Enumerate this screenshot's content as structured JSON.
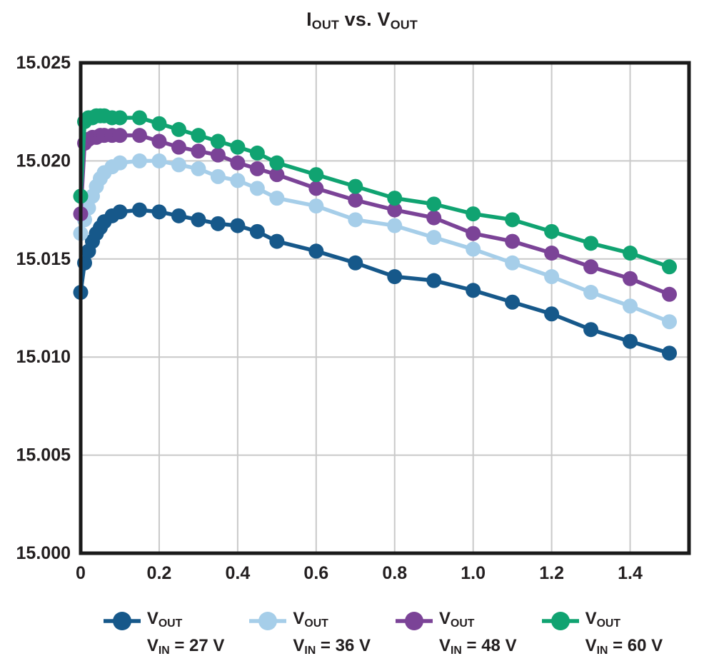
{
  "title": {
    "p1": "I",
    "s1": "OUT",
    "p2": " vs. ",
    "p3": "V",
    "s3": "OUT"
  },
  "colors": {
    "grid": "#C9C9C9",
    "frame": "#1A1A1A",
    "text": "#231F20",
    "background": "#FFFFFF"
  },
  "legend": {
    "items": [
      {
        "sym": "V",
        "sym_sub": "OUT",
        "cond": "V",
        "cond_sub": "IN",
        "cond_val": " = 27 V"
      },
      {
        "sym": "V",
        "sym_sub": "OUT",
        "cond": "V",
        "cond_sub": "IN",
        "cond_val": " = 36 V"
      },
      {
        "sym": "V",
        "sym_sub": "OUT",
        "cond": "V",
        "cond_sub": "IN",
        "cond_val": " = 48 V"
      },
      {
        "sym": "V",
        "sym_sub": "OUT",
        "cond": "V",
        "cond_sub": "IN",
        "cond_val": " = 60 V"
      }
    ]
  },
  "chart_data": {
    "type": "line",
    "title": "IOUT vs. VOUT",
    "xlabel": "",
    "ylabel": "",
    "grid": true,
    "legend_position": "bottom",
    "xlim": [
      0,
      1.55
    ],
    "ylim": [
      15.0,
      15.025
    ],
    "x_ticks": [
      0,
      0.2,
      0.4,
      0.6,
      0.8,
      1.0,
      1.2,
      1.4
    ],
    "x_tick_labels": [
      "0",
      "0.2",
      "0.4",
      "0.6",
      "0.8",
      "1.0",
      "1.2",
      "1.4"
    ],
    "y_ticks": [
      15.0,
      15.005,
      15.01,
      15.015,
      15.02,
      15.025
    ],
    "y_tick_labels": [
      "15.000",
      "15.005",
      "15.010",
      "15.015",
      "15.020",
      "15.025"
    ],
    "x": [
      0,
      0.01,
      0.02,
      0.03,
      0.04,
      0.05,
      0.06,
      0.08,
      0.1,
      0.15,
      0.2,
      0.25,
      0.3,
      0.35,
      0.4,
      0.45,
      0.5,
      0.6,
      0.7,
      0.8,
      0.9,
      1.0,
      1.1,
      1.2,
      1.3,
      1.4,
      1.5
    ],
    "series": [
      {
        "name": "VOUT, VIN = 27 V",
        "slug": "vin-27v",
        "color": "#16588A",
        "values": [
          15.0133,
          15.0148,
          15.0154,
          15.0159,
          15.0163,
          15.0166,
          15.0169,
          15.0172,
          15.0174,
          15.0175,
          15.0174,
          15.0172,
          15.017,
          15.0168,
          15.0167,
          15.0164,
          15.0159,
          15.0154,
          15.0148,
          15.0141,
          15.0139,
          15.0134,
          15.0128,
          15.0122,
          15.0114,
          15.0108,
          15.0102
        ]
      },
      {
        "name": "VOUT, VIN = 36 V",
        "slug": "vin-36v",
        "color": "#A6CEE9",
        "values": [
          15.0163,
          15.017,
          15.0176,
          15.0182,
          15.0187,
          15.0191,
          15.0194,
          15.0197,
          15.0199,
          15.02,
          15.02,
          15.0198,
          15.0196,
          15.0192,
          15.019,
          15.0186,
          15.0181,
          15.0177,
          15.017,
          15.0167,
          15.0161,
          15.0155,
          15.0148,
          15.0141,
          15.0133,
          15.0126,
          15.0118
        ]
      },
      {
        "name": "VOUT, VIN = 48 V",
        "slug": "vin-48v",
        "color": "#7B4397",
        "values": [
          15.0173,
          15.0209,
          15.0211,
          15.0212,
          15.0212,
          15.0213,
          15.0213,
          15.0213,
          15.0213,
          15.0213,
          15.021,
          15.0207,
          15.0205,
          15.0203,
          15.0199,
          15.0196,
          15.0193,
          15.0186,
          15.018,
          15.0175,
          15.0171,
          15.0163,
          15.0159,
          15.0153,
          15.0146,
          15.014,
          15.0132
        ]
      },
      {
        "name": "VOUT, VIN = 60 V",
        "slug": "vin-60v",
        "color": "#10A371",
        "values": [
          15.0182,
          15.022,
          15.0222,
          15.0222,
          15.0223,
          15.0223,
          15.0223,
          15.0222,
          15.0222,
          15.0222,
          15.0219,
          15.0216,
          15.0213,
          15.021,
          15.0207,
          15.0204,
          15.0199,
          15.0193,
          15.0187,
          15.0181,
          15.0178,
          15.0173,
          15.017,
          15.0164,
          15.0158,
          15.0153,
          15.0146
        ]
      }
    ]
  }
}
